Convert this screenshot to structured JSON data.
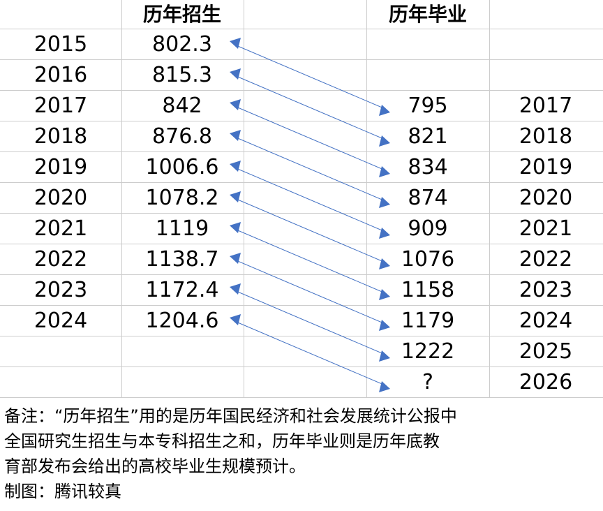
{
  "chart_data": {
    "type": "table",
    "headers": {
      "enrollment": "历年招生",
      "graduation": "历年毕业"
    },
    "enrollment": [
      {
        "year": "2015",
        "value": "802.3"
      },
      {
        "year": "2016",
        "value": "815.3"
      },
      {
        "year": "2017",
        "value": "842"
      },
      {
        "year": "2018",
        "value": "876.8"
      },
      {
        "year": "2019",
        "value": "1006.6"
      },
      {
        "year": "2020",
        "value": "1078.2"
      },
      {
        "year": "2021",
        "value": "1119"
      },
      {
        "year": "2022",
        "value": "1138.7"
      },
      {
        "year": "2023",
        "value": "1172.4"
      },
      {
        "year": "2024",
        "value": "1204.6"
      }
    ],
    "graduation": [
      {
        "value": "795",
        "year": "2017"
      },
      {
        "value": "821",
        "year": "2018"
      },
      {
        "value": "834",
        "year": "2019"
      },
      {
        "value": "874",
        "year": "2020"
      },
      {
        "value": "909",
        "year": "2021"
      },
      {
        "value": "1076",
        "year": "2022"
      },
      {
        "value": "1158",
        "year": "2023"
      },
      {
        "value": "1179",
        "year": "2024"
      },
      {
        "value": "1222",
        "year": "2025"
      },
      {
        "value": "?",
        "year": "2026"
      }
    ],
    "arrow_links": [
      [
        0,
        0
      ],
      [
        1,
        1
      ],
      [
        2,
        2
      ],
      [
        3,
        3
      ],
      [
        4,
        4
      ],
      [
        5,
        5
      ],
      [
        6,
        6
      ],
      [
        7,
        7
      ],
      [
        8,
        8
      ],
      [
        9,
        9
      ]
    ],
    "line_color": "#4472c4",
    "grid_color": "#cccccc"
  },
  "notes": {
    "line1": "备注：“历年招生”用的是历年国民经济和社会发展统计公报中",
    "line2": "全国研究生招生与本专科招生之和，历年毕业则是历年底教",
    "line3": "育部发布会给出的高校毕业生规模预计。",
    "line4": "制图：腾讯较真"
  }
}
